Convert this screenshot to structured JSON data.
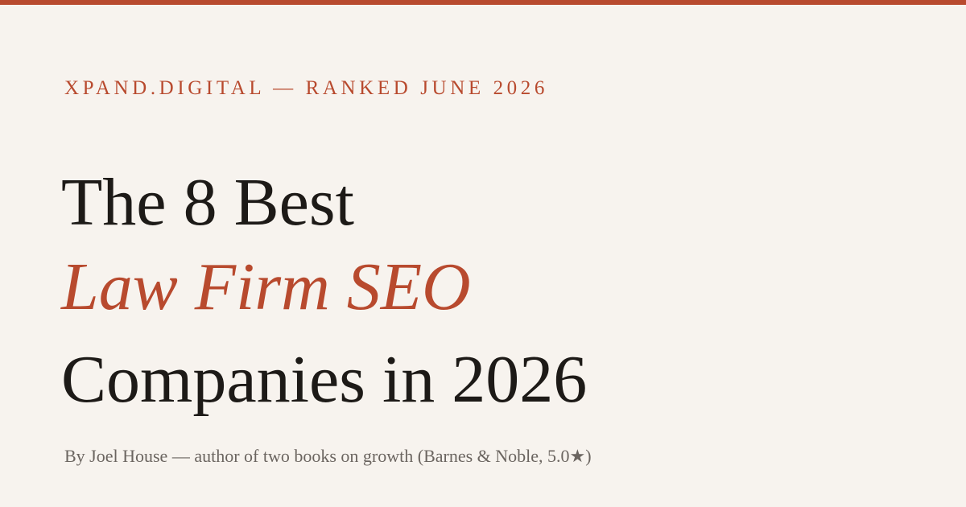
{
  "header": {
    "kicker": "XPAND.DIGITAL — RANKED JUNE 2026"
  },
  "headline": {
    "line1": "The 8 Best",
    "line2": "Law Firm SEO",
    "line3": "Companies in 2026"
  },
  "byline": "By Joel House — author of two books on growth (Barnes & Noble, 5.0★)"
}
